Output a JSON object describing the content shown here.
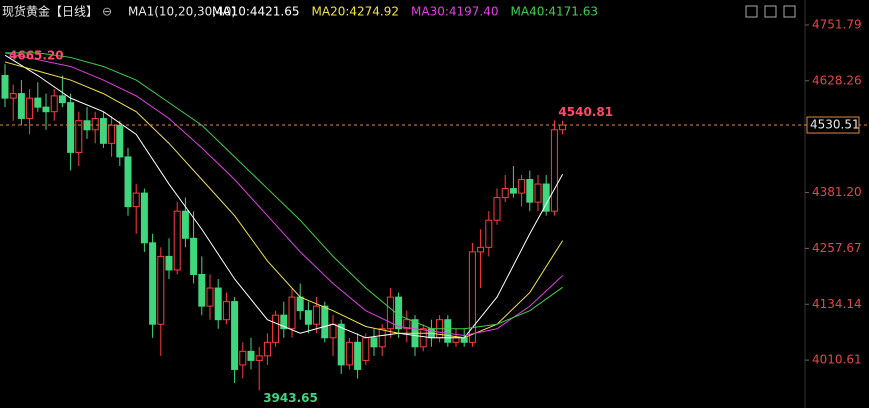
{
  "chart_data": {
    "type": "candlestick",
    "title": "现货黄金【日线】",
    "indicator": "MA1(10,20,30,40)",
    "up_color": "#ff3c3c",
    "down_color": "#3fd67e",
    "ylim": [
      3922.4,
      4767.2
    ],
    "yticks": [
      4010.61,
      4134.14,
      {
        "value": 4257.67,
        "label": "4257.67"
      },
      {
        "value": 4381.2,
        "label": "4381.20"
      },
      4628.26,
      4751.79
    ],
    "current_price": 4530.51,
    "annotations": [
      {
        "value": 4665.2,
        "label": "4665.20",
        "index": 0,
        "color": "#ff4a6a"
      },
      {
        "value": 3943.65,
        "label": "3943.65",
        "index": 31,
        "color": "#3fd67e"
      },
      {
        "value": 4540.81,
        "label": "4540.81",
        "index": 67,
        "color": "#ff4a6a"
      }
    ],
    "candles": [
      [
        4640,
        4665.2,
        4570,
        4590
      ],
      [
        4590,
        4620,
        4540,
        4600
      ],
      [
        4600,
        4630,
        4530,
        4545
      ],
      [
        4545,
        4610,
        4510,
        4590
      ],
      [
        4590,
        4625,
        4560,
        4570
      ],
      [
        4570,
        4600,
        4520,
        4560
      ],
      [
        4560,
        4610,
        4540,
        4595
      ],
      [
        4595,
        4640,
        4570,
        4580
      ],
      [
        4580,
        4600,
        4430,
        4470
      ],
      [
        4470,
        4560,
        4440,
        4540
      ],
      [
        4540,
        4570,
        4500,
        4520
      ],
      [
        4520,
        4560,
        4490,
        4545
      ],
      [
        4545,
        4560,
        4480,
        4490
      ],
      [
        4490,
        4550,
        4460,
        4530
      ],
      [
        4530,
        4540,
        4440,
        4460
      ],
      [
        4460,
        4480,
        4330,
        4350
      ],
      [
        4350,
        4400,
        4290,
        4380
      ],
      [
        4380,
        4390,
        4250,
        4270
      ],
      [
        4270,
        4290,
        4060,
        4090
      ],
      [
        4090,
        4260,
        4020,
        4240
      ],
      [
        4240,
        4280,
        4190,
        4210
      ],
      [
        4210,
        4360,
        4200,
        4340
      ],
      [
        4340,
        4370,
        4260,
        4280
      ],
      [
        4280,
        4340,
        4180,
        4200
      ],
      [
        4200,
        4240,
        4110,
        4130
      ],
      [
        4130,
        4200,
        4100,
        4170
      ],
      [
        4170,
        4190,
        4080,
        4100
      ],
      [
        4100,
        4160,
        4090,
        4140
      ],
      [
        4140,
        4150,
        3960,
        3990
      ],
      [
        4000,
        4050,
        3970,
        4030
      ],
      [
        4030,
        4060,
        3990,
        4010
      ],
      [
        4010,
        4040,
        3943.65,
        4020
      ],
      [
        4020,
        4070,
        4000,
        4050
      ],
      [
        4050,
        4120,
        4040,
        4110
      ],
      [
        4110,
        4140,
        4060,
        4080
      ],
      [
        4080,
        4170,
        4060,
        4150
      ],
      [
        4150,
        4180,
        4100,
        4120
      ],
      [
        4120,
        4140,
        4070,
        4090
      ],
      [
        4090,
        4150,
        4070,
        4130
      ],
      [
        4130,
        4140,
        4050,
        4060
      ],
      [
        4060,
        4110,
        4020,
        4090
      ],
      [
        4090,
        4100,
        3980,
        4000
      ],
      [
        4000,
        4060,
        3990,
        4050
      ],
      [
        4050,
        4070,
        3970,
        3990
      ],
      [
        4010,
        4070,
        4000,
        4060
      ],
      [
        4060,
        4080,
        4020,
        4040
      ],
      [
        4040,
        4090,
        4020,
        4080
      ],
      [
        4080,
        4170,
        4060,
        4150
      ],
      [
        4150,
        4160,
        4060,
        4080
      ],
      [
        4080,
        4120,
        4050,
        4100
      ],
      [
        4100,
        4110,
        4020,
        4040
      ],
      [
        4040,
        4090,
        4030,
        4080
      ],
      [
        4080,
        4100,
        4040,
        4060
      ],
      [
        4060,
        4110,
        4050,
        4100
      ],
      [
        4100,
        4110,
        4040,
        4050
      ],
      [
        4050,
        4080,
        4040,
        4060
      ],
      [
        4060,
        4080,
        4040,
        4050
      ],
      [
        4050,
        4270,
        4040,
        4250
      ],
      [
        4250,
        4300,
        4170,
        4260
      ],
      [
        4260,
        4340,
        4240,
        4320
      ],
      [
        4320,
        4390,
        4310,
        4370
      ],
      [
        4370,
        4420,
        4360,
        4390
      ],
      [
        4390,
        4440,
        4370,
        4380
      ],
      [
        4380,
        4420,
        4350,
        4410
      ],
      [
        4410,
        4430,
        4340,
        4360
      ],
      [
        4360,
        4420,
        4340,
        4400
      ],
      [
        4400,
        4420,
        4330,
        4340
      ],
      [
        4340,
        4540.81,
        4330,
        4520
      ],
      [
        4520,
        4540,
        4510,
        4530.51
      ]
    ],
    "series": [
      {
        "name": "MA10:4421.65",
        "color": "#ffffff",
        "x": [
          0,
          4,
          8,
          12,
          16,
          20,
          24,
          28,
          32,
          36,
          40,
          44,
          48,
          52,
          56,
          60,
          64,
          68
        ],
        "values": [
          4685,
          4640,
          4590,
          4560,
          4510,
          4400,
          4300,
          4190,
          4100,
          4070,
          4090,
          4060,
          4070,
          4060,
          4060,
          4150,
          4290,
          4421.65
        ]
      },
      {
        "name": "MA20:4274.92",
        "color": "#f2e24a",
        "x": [
          0,
          4,
          8,
          12,
          16,
          20,
          24,
          28,
          32,
          36,
          40,
          44,
          48,
          52,
          56,
          60,
          64,
          68
        ],
        "values": [
          4670,
          4650,
          4630,
          4600,
          4560,
          4490,
          4410,
          4330,
          4230,
          4150,
          4120,
          4085,
          4070,
          4070,
          4060,
          4090,
          4160,
          4274.92
        ]
      },
      {
        "name": "MA30:4197.40",
        "color": "#e040e0",
        "x": [
          0,
          4,
          8,
          12,
          16,
          20,
          24,
          28,
          32,
          36,
          40,
          44,
          48,
          52,
          56,
          60,
          64,
          68
        ],
        "values": [
          4690,
          4675,
          4660,
          4630,
          4595,
          4545,
          4480,
          4410,
          4330,
          4250,
          4180,
          4120,
          4085,
          4075,
          4065,
          4080,
          4130,
          4197.4
        ]
      },
      {
        "name": "MA40:4171.63",
        "color": "#3ecf4a",
        "x": [
          0,
          4,
          8,
          12,
          16,
          20,
          24,
          28,
          32,
          36,
          40,
          44,
          48,
          52,
          56,
          60,
          64,
          68
        ],
        "values": [
          4690,
          4690,
          4680,
          4660,
          4630,
          4580,
          4530,
          4460,
          4390,
          4320,
          4240,
          4170,
          4110,
          4080,
          4080,
          4090,
          4120,
          4171.63
        ]
      }
    ]
  }
}
